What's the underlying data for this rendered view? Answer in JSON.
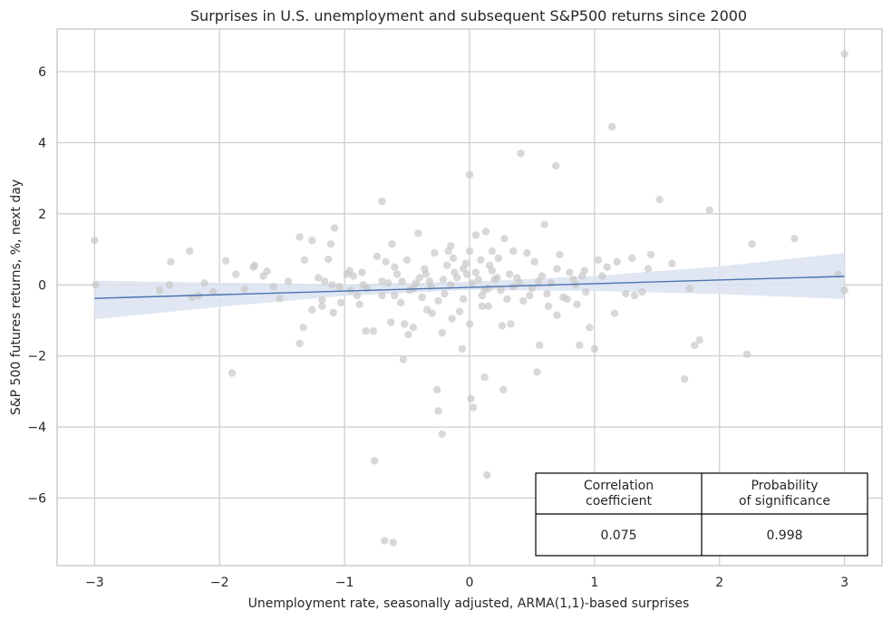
{
  "chart_data": {
    "type": "scatter",
    "title": "Surprises in U.S. unemployment and subsequent S&P500 returns since 2000",
    "xlabel": "Unemployment rate, seasonally adjusted, ARMA(1,1)-based surprises",
    "ylabel": "S&P 500 futures returns, %, next day",
    "xlim": [
      -3.3,
      3.3
    ],
    "ylim": [
      -7.9,
      7.2
    ],
    "xticks": [
      -3,
      -2,
      -1,
      0,
      1,
      2,
      3
    ],
    "xtick_labels": [
      "−3",
      "−2",
      "−1",
      "0",
      "1",
      "2",
      "3"
    ],
    "yticks": [
      -6,
      -4,
      -2,
      0,
      2,
      4,
      6
    ],
    "ytick_labels": [
      "−6",
      "−4",
      "−2",
      "0",
      "2",
      "4",
      "6"
    ],
    "grid": true,
    "colors": {
      "points": "#c8c8c8",
      "regression_line": "#4c72b0",
      "confidence_band": "#dbe3f0",
      "grid": "#cccccc",
      "axes": "#cccccc"
    },
    "regression": {
      "x": [
        -3,
        3
      ],
      "y": [
        -0.38,
        0.24
      ]
    },
    "confidence_band": {
      "x": [
        -3.0,
        -2.0,
        -1.0,
        0.0,
        1.0,
        2.0,
        3.0
      ],
      "upper": [
        0.12,
        0.06,
        0.02,
        0.09,
        0.25,
        0.52,
        0.9
      ],
      "lower": [
        -0.97,
        -0.62,
        -0.31,
        -0.14,
        -0.17,
        -0.26,
        -0.4
      ]
    },
    "points": [
      [
        -3.0,
        1.25
      ],
      [
        -2.99,
        0.0
      ],
      [
        -2.48,
        -0.15
      ],
      [
        -2.39,
        0.65
      ],
      [
        -2.4,
        0.0
      ],
      [
        -2.24,
        0.95
      ],
      [
        -2.22,
        -0.35
      ],
      [
        -2.17,
        -0.3
      ],
      [
        -2.12,
        0.05
      ],
      [
        -2.05,
        -0.2
      ],
      [
        -1.95,
        0.68
      ],
      [
        -1.9,
        -2.48
      ],
      [
        -1.87,
        0.3
      ],
      [
        -1.8,
        -0.12
      ],
      [
        -1.73,
        0.5
      ],
      [
        -1.72,
        0.55
      ],
      [
        -1.65,
        0.25
      ],
      [
        -1.62,
        0.38
      ],
      [
        -1.57,
        -0.05
      ],
      [
        -1.52,
        -0.38
      ],
      [
        -1.45,
        0.1
      ],
      [
        -1.36,
        1.35
      ],
      [
        -1.36,
        -1.65
      ],
      [
        -1.33,
        -1.2
      ],
      [
        -1.32,
        0.7
      ],
      [
        -1.26,
        1.25
      ],
      [
        -1.26,
        -0.7
      ],
      [
        -1.21,
        0.2
      ],
      [
        -1.18,
        -0.42
      ],
      [
        -1.18,
        -0.6
      ],
      [
        -1.16,
        0.1
      ],
      [
        -1.13,
        0.72
      ],
      [
        -1.11,
        1.15
      ],
      [
        -1.1,
        0.0
      ],
      [
        -1.09,
        -0.78
      ],
      [
        -1.08,
        1.6
      ],
      [
        -1.04,
        -0.05
      ],
      [
        -1.03,
        -0.5
      ],
      [
        -0.98,
        0.3
      ],
      [
        -0.96,
        0.4
      ],
      [
        -0.93,
        0.25
      ],
      [
        -0.9,
        -0.3
      ],
      [
        -0.88,
        -0.55
      ],
      [
        -0.86,
        0.35
      ],
      [
        -0.83,
        -1.3
      ],
      [
        -0.82,
        -0.1
      ],
      [
        -0.77,
        -1.3
      ],
      [
        -0.76,
        -4.95
      ],
      [
        -0.74,
        0.8
      ],
      [
        -0.7,
        2.35
      ],
      [
        -0.7,
        -0.3
      ],
      [
        -0.68,
        -7.2
      ],
      [
        -0.67,
        0.65
      ],
      [
        -0.65,
        0.05
      ],
      [
        -0.63,
        -1.05
      ],
      [
        -0.61,
        -7.25
      ],
      [
        -0.62,
        1.15
      ],
      [
        -0.6,
        0.5
      ],
      [
        -0.55,
        -0.5
      ],
      [
        -0.54,
        0.1
      ],
      [
        -0.53,
        -2.1
      ],
      [
        -0.52,
        -1.1
      ],
      [
        -0.5,
        0.7
      ],
      [
        -0.49,
        -1.4
      ],
      [
        -0.48,
        -0.15
      ],
      [
        -0.45,
        -1.2
      ],
      [
        -0.43,
        0.05
      ],
      [
        -0.41,
        1.45
      ],
      [
        -0.38,
        -0.35
      ],
      [
        -0.36,
        0.45
      ],
      [
        -0.35,
        0.3
      ],
      [
        -0.34,
        -0.7
      ],
      [
        -0.31,
        -0.05
      ],
      [
        -0.3,
        -0.8
      ],
      [
        -0.28,
        0.9
      ],
      [
        -0.26,
        -2.95
      ],
      [
        -0.25,
        -3.55
      ],
      [
        -0.22,
        -4.2
      ],
      [
        -0.22,
        -1.35
      ],
      [
        -0.21,
        0.15
      ],
      [
        -0.18,
        0.55
      ],
      [
        -0.17,
        0.95
      ],
      [
        -0.15,
        1.1
      ],
      [
        -0.14,
        -0.95
      ],
      [
        -0.13,
        0.75
      ],
      [
        -0.1,
        0.2
      ],
      [
        -0.08,
        -0.75
      ],
      [
        -0.06,
        -1.8
      ],
      [
        -0.05,
        0.45
      ],
      [
        -0.03,
        0.6
      ],
      [
        -0.02,
        0.3
      ],
      [
        0.0,
        3.1
      ],
      [
        0.0,
        0.95
      ],
      [
        0.0,
        -1.1
      ],
      [
        0.01,
        -3.2
      ],
      [
        0.03,
        -3.45
      ],
      [
        0.05,
        1.4
      ],
      [
        0.07,
        0.15
      ],
      [
        0.09,
        0.7
      ],
      [
        0.1,
        -0.3
      ],
      [
        0.12,
        -2.6
      ],
      [
        0.12,
        -0.15
      ],
      [
        0.13,
        1.5
      ],
      [
        0.14,
        -5.35
      ],
      [
        0.15,
        -0.6
      ],
      [
        0.16,
        0.55
      ],
      [
        0.18,
        0.95
      ],
      [
        0.2,
        0.15
      ],
      [
        0.23,
        0.75
      ],
      [
        0.26,
        -1.15
      ],
      [
        0.27,
        -2.95
      ],
      [
        0.28,
        1.3
      ],
      [
        0.3,
        -0.4
      ],
      [
        0.33,
        -1.1
      ],
      [
        0.35,
        0.95
      ],
      [
        0.38,
        0.2
      ],
      [
        0.41,
        3.7
      ],
      [
        0.43,
        -0.45
      ],
      [
        0.46,
        0.9
      ],
      [
        0.5,
        -0.1
      ],
      [
        0.52,
        0.65
      ],
      [
        0.54,
        -2.45
      ],
      [
        0.56,
        -1.7
      ],
      [
        0.58,
        0.25
      ],
      [
        0.6,
        1.7
      ],
      [
        0.62,
        -0.25
      ],
      [
        0.65,
        0.05
      ],
      [
        0.69,
        3.35
      ],
      [
        0.7,
        -0.85
      ],
      [
        0.72,
        0.85
      ],
      [
        0.75,
        -0.35
      ],
      [
        0.8,
        0.35
      ],
      [
        0.83,
        0.15
      ],
      [
        0.86,
        -0.55
      ],
      [
        0.88,
        -1.7
      ],
      [
        0.9,
        0.25
      ],
      [
        0.93,
        -0.2
      ],
      [
        0.96,
        -1.2
      ],
      [
        1.0,
        -1.8
      ],
      [
        1.03,
        0.7
      ],
      [
        1.06,
        0.25
      ],
      [
        1.1,
        0.5
      ],
      [
        1.14,
        4.45
      ],
      [
        1.16,
        -0.8
      ],
      [
        1.18,
        0.65
      ],
      [
        1.25,
        -0.25
      ],
      [
        1.3,
        0.75
      ],
      [
        1.32,
        -0.3
      ],
      [
        1.38,
        -0.2
      ],
      [
        1.43,
        0.45
      ],
      [
        1.45,
        0.85
      ],
      [
        1.52,
        2.4
      ],
      [
        1.62,
        0.6
      ],
      [
        1.72,
        -2.65
      ],
      [
        1.76,
        -0.1
      ],
      [
        1.8,
        -1.7
      ],
      [
        1.84,
        -1.55
      ],
      [
        1.92,
        2.1
      ],
      [
        2.22,
        -1.95
      ],
      [
        2.26,
        1.15
      ],
      [
        2.6,
        1.3
      ],
      [
        2.95,
        0.3
      ],
      [
        3.0,
        6.5
      ],
      [
        3.0,
        -0.15
      ],
      [
        -0.7,
        0.1
      ],
      [
        -0.58,
        0.3
      ],
      [
        -0.45,
        -0.1
      ],
      [
        -0.32,
        0.1
      ],
      [
        -0.2,
        -0.25
      ],
      [
        -0.12,
        0.35
      ],
      [
        -0.05,
        -0.4
      ],
      [
        0.05,
        0.35
      ],
      [
        0.1,
        -0.6
      ],
      [
        0.18,
        0.4
      ],
      [
        0.25,
        -0.15
      ],
      [
        0.32,
        0.3
      ],
      [
        0.4,
        0.05
      ],
      [
        0.48,
        -0.3
      ],
      [
        0.55,
        0.1
      ],
      [
        0.63,
        -0.6
      ],
      [
        0.7,
        0.45
      ],
      [
        0.78,
        -0.4
      ],
      [
        0.85,
        0.0
      ],
      [
        0.92,
        0.4
      ],
      [
        -0.95,
        -0.15
      ],
      [
        -0.85,
        0.0
      ],
      [
        -0.6,
        -0.3
      ],
      [
        -0.4,
        0.2
      ],
      [
        -0.25,
        -0.45
      ],
      [
        -0.15,
        0.0
      ],
      [
        0.02,
        0.05
      ],
      [
        0.15,
        -0.1
      ],
      [
        0.22,
        0.2
      ],
      [
        0.35,
        -0.05
      ]
    ],
    "table": {
      "headers": [
        "Correlation\ncoefficient",
        "Probability\nof significance"
      ],
      "values": [
        "0.075",
        "0.998"
      ]
    }
  }
}
